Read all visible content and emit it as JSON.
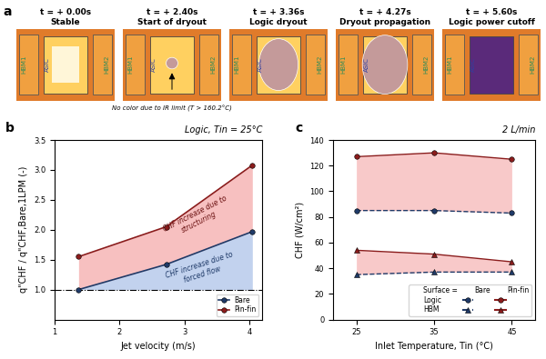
{
  "thermal_images": {
    "label": "a",
    "frames": [
      {
        "time": "t = + 0.00s",
        "state": "Stable"
      },
      {
        "time": "t = + 2.40s",
        "state": "Start of dryout"
      },
      {
        "time": "t = + 3.36s",
        "state": "Logic dryout"
      },
      {
        "time": "t = + 4.27s",
        "state": "Dryout propagation"
      },
      {
        "time": "t = + 5.60s",
        "state": "Logic power cutoff"
      }
    ],
    "regions": [
      "HBM1",
      "ASIC",
      "HBM2"
    ],
    "note": "No color due to IR limit (T > 160.2°C)"
  },
  "chart_data": [
    {
      "type": "line",
      "panel_label": "b",
      "title": "Logic, Tin = 25°C",
      "x_label": "Jet velocity (m/s)",
      "y_label": "q\"CHF / q\"CHF,Bare,1LPM (-)",
      "x": [
        1.37,
        2.72,
        4.05
      ],
      "series": [
        {
          "name": "Bare",
          "color": "#1f3a68",
          "marker": "circle",
          "values": [
            1.0,
            1.42,
            1.97
          ]
        },
        {
          "name": "Pin-fin",
          "color": "#8b1c1c",
          "marker": "circle",
          "values": [
            1.55,
            2.05,
            3.08
          ]
        }
      ],
      "reference_line": 1.0,
      "annotations": [
        "CHF increase due to\nstructuring",
        "CHF increase due to\nforced flow"
      ],
      "xlim": [
        1,
        4.2
      ],
      "xticks": [
        1,
        2,
        3,
        4
      ],
      "ylim": [
        0.5,
        3.5
      ],
      "yticks": [
        {
          "value": 1.0,
          "label": "1.0"
        },
        {
          "value": 1.5,
          "label": "1.5"
        },
        {
          "value": 2.0,
          "label": "2.0"
        },
        {
          "value": 2.5,
          "label": "2.5"
        },
        {
          "value": 3.0,
          "label": "3.0"
        },
        {
          "value": 3.5,
          "label": "3.5"
        }
      ],
      "legend": "lower right"
    },
    {
      "type": "line",
      "panel_label": "c",
      "title": "2 L/min",
      "x_label": "Inlet Temperature, Tin (°C)",
      "y_label": "CHF (W/cm²)",
      "x": [
        25,
        35,
        45
      ],
      "legend_table": {
        "title": "Surface =",
        "columns": [
          "Bare",
          "Pin-fin"
        ],
        "rows": [
          "Logic",
          "HBM"
        ]
      },
      "series": [
        {
          "row": "Logic",
          "column": "Bare",
          "color": "#1f3a68",
          "marker": "circle",
          "values": [
            85,
            85,
            83
          ]
        },
        {
          "row": "Logic",
          "column": "Pin-fin",
          "color": "#8b1c1c",
          "marker": "circle",
          "values": [
            127,
            130,
            125
          ]
        },
        {
          "row": "HBM",
          "column": "Bare",
          "color": "#1f3a68",
          "marker": "triangle",
          "values": [
            35,
            37,
            37
          ]
        },
        {
          "row": "HBM",
          "column": "Pin-fin",
          "color": "#8b1c1c",
          "marker": "triangle",
          "values": [
            54,
            51,
            45
          ]
        }
      ],
      "xlim": [
        22,
        48
      ],
      "xticks": [
        25,
        35,
        45
      ],
      "ylim": [
        0,
        140
      ],
      "yticks": [
        0,
        20,
        40,
        60,
        80,
        100,
        120,
        140
      ],
      "legend": "lower right"
    }
  ]
}
